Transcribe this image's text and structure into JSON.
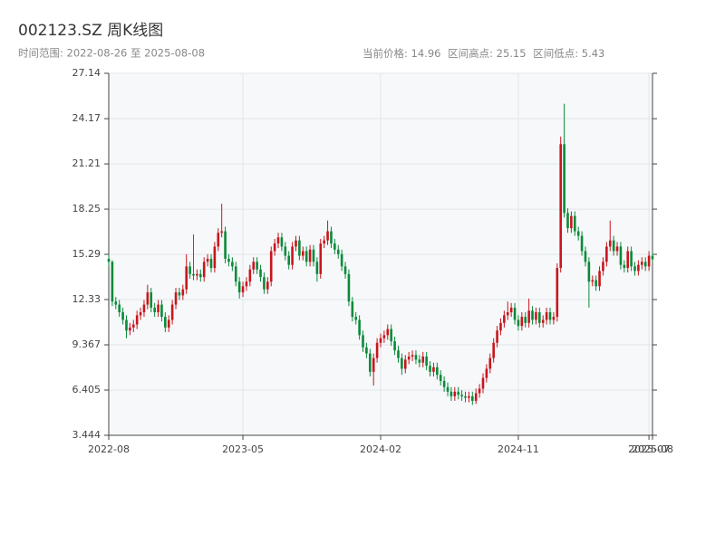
{
  "chart_data": {
    "type": "candlestick",
    "title": "002123.SZ 周K线图",
    "subtitle": "时间范围: 2022-08-26 至 2025-08-08",
    "stats": [
      "当前价格: 14.96",
      "区间高点: 25.15",
      "区间低点: 5.43"
    ],
    "up_color": "#c8161d",
    "down_color": "#0a8a3a",
    "grid": true,
    "ylim": [
      3.444,
      27.14
    ],
    "yticks": [
      3.444,
      6.405,
      9.367,
      12.33,
      15.29,
      18.25,
      21.21,
      24.17,
      27.14
    ],
    "xticks": [
      {
        "value": 0,
        "label": "2022-08"
      },
      {
        "value": 38,
        "label": "2023-05"
      },
      {
        "value": 77,
        "label": "2024-02"
      },
      {
        "value": 116,
        "label": "2024-11"
      },
      {
        "value": 153,
        "label": "2025-07"
      },
      {
        "value": 154,
        "label": "2025-08"
      }
    ],
    "open": [
      15.0,
      14.8,
      12.2,
      12.0,
      11.5,
      11.0,
      10.3,
      10.5,
      10.7,
      11.3,
      11.5,
      12.0,
      12.8,
      11.8,
      11.5,
      12.0,
      11.2,
      10.5,
      11.0,
      12.0,
      12.8,
      12.6,
      13.0,
      14.5,
      14.0,
      13.9,
      14.0,
      13.8,
      14.8,
      15.0,
      14.4,
      15.8,
      16.7,
      16.8,
      15.0,
      14.8,
      14.5,
      13.5,
      12.8,
      13.2,
      13.5,
      14.3,
      14.8,
      14.3,
      13.8,
      13.0,
      13.5,
      15.5,
      16.0,
      16.4,
      15.8,
      15.2,
      14.6,
      15.8,
      16.2,
      15.2,
      15.5,
      14.8,
      15.6,
      14.8,
      14.0,
      16.0,
      16.2,
      16.8,
      16.0,
      15.6,
      15.3,
      14.5,
      14.0,
      12.2,
      11.2,
      11.0,
      10.0,
      9.2,
      8.8,
      7.6,
      8.5,
      9.5,
      9.8,
      10.0,
      10.4,
      9.6,
      9.0,
      8.5,
      7.8,
      8.4,
      8.6,
      8.7,
      8.4,
      8.2,
      8.6,
      8.0,
      7.6,
      7.9,
      7.4,
      7.0,
      6.6,
      6.3,
      6.0,
      6.3,
      6.1,
      6.0,
      5.9,
      6.0,
      5.7,
      6.2,
      6.5,
      7.2,
      7.8,
      8.5,
      9.5,
      10.3,
      10.8,
      11.3,
      11.5,
      11.8,
      11.0,
      10.6,
      11.2,
      10.8,
      11.6,
      11.0,
      11.5,
      10.8,
      11.0,
      11.5,
      11.0,
      11.2,
      14.4,
      22.5,
      18.0,
      17.0,
      17.8,
      16.8,
      16.5,
      15.5,
      14.8,
      13.5,
      13.6,
      13.2,
      14.2,
      14.8,
      15.8,
      16.2,
      15.5,
      15.8,
      14.6,
      14.4,
      15.5,
      14.5,
      14.2,
      14.6,
      14.8,
      14.5,
      15.2
    ],
    "high": [
      15.3,
      14.9,
      12.5,
      12.3,
      11.8,
      11.3,
      10.8,
      11.0,
      11.6,
      11.8,
      12.3,
      13.3,
      13.1,
      12.1,
      12.3,
      12.3,
      11.5,
      11.3,
      12.3,
      13.1,
      13.1,
      13.3,
      15.3,
      14.8,
      16.6,
      14.3,
      14.3,
      15.1,
      15.3,
      15.3,
      16.1,
      17.0,
      18.6,
      17.1,
      15.3,
      15.1,
      14.8,
      13.8,
      13.5,
      13.8,
      14.6,
      15.1,
      15.1,
      14.6,
      14.1,
      13.8,
      15.8,
      16.3,
      16.7,
      16.7,
      16.1,
      15.5,
      16.1,
      16.5,
      16.5,
      15.8,
      15.8,
      15.9,
      15.9,
      15.1,
      16.3,
      16.5,
      17.5,
      17.1,
      16.3,
      15.9,
      15.6,
      14.8,
      14.3,
      12.5,
      11.5,
      11.3,
      10.3,
      9.5,
      9.1,
      8.8,
      9.8,
      10.1,
      10.3,
      10.7,
      10.7,
      9.9,
      9.3,
      8.8,
      8.7,
      8.9,
      9.0,
      9.0,
      8.7,
      8.9,
      8.9,
      8.3,
      8.2,
      8.2,
      7.7,
      7.3,
      6.9,
      6.6,
      6.6,
      6.6,
      6.4,
      6.3,
      6.3,
      6.3,
      6.5,
      6.8,
      7.5,
      8.1,
      8.8,
      9.8,
      10.6,
      11.1,
      11.6,
      12.2,
      12.1,
      12.1,
      11.3,
      11.5,
      11.5,
      12.4,
      11.9,
      11.8,
      11.8,
      11.3,
      11.8,
      11.8,
      11.5,
      14.7,
      23.0,
      25.15,
      18.3,
      18.1,
      18.1,
      17.1,
      16.8,
      15.8,
      15.1,
      13.9,
      13.9,
      14.5,
      15.1,
      16.1,
      17.5,
      16.5,
      16.1,
      16.1,
      14.9,
      15.8,
      15.8,
      14.8,
      14.9,
      15.1,
      15.1,
      15.5,
      15.5
    ],
    "low": [
      14.5,
      11.9,
      11.7,
      11.2,
      10.7,
      9.8,
      10.0,
      10.2,
      10.4,
      11.0,
      11.2,
      11.7,
      11.5,
      11.2,
      11.2,
      10.9,
      10.2,
      10.2,
      10.7,
      11.7,
      12.3,
      12.3,
      12.7,
      13.7,
      13.6,
      13.6,
      13.5,
      13.5,
      14.5,
      14.1,
      14.1,
      15.5,
      16.4,
      14.7,
      14.5,
      14.2,
      13.2,
      12.4,
      12.5,
      12.9,
      13.2,
      14.0,
      14.0,
      13.5,
      12.7,
      12.7,
      13.2,
      15.2,
      15.7,
      15.5,
      14.9,
      14.3,
      14.3,
      15.5,
      14.9,
      14.9,
      14.5,
      14.5,
      14.5,
      13.5,
      13.7,
      15.7,
      15.9,
      15.7,
      15.3,
      15.0,
      14.2,
      13.7,
      11.9,
      10.9,
      10.7,
      9.7,
      8.9,
      8.5,
      7.3,
      6.7,
      8.2,
      9.2,
      9.5,
      9.7,
      9.3,
      8.7,
      8.2,
      7.4,
      7.5,
      8.1,
      8.3,
      8.1,
      7.9,
      7.9,
      7.7,
      7.3,
      7.3,
      7.1,
      6.7,
      6.3,
      6.0,
      5.7,
      5.7,
      5.8,
      5.7,
      5.6,
      5.6,
      5.43,
      5.5,
      5.9,
      6.2,
      6.9,
      7.5,
      8.2,
      9.2,
      10.0,
      10.5,
      11.0,
      11.2,
      10.7,
      10.3,
      10.3,
      10.5,
      10.5,
      10.7,
      10.7,
      10.5,
      10.5,
      10.7,
      10.7,
      10.7,
      10.9,
      14.1,
      17.7,
      16.7,
      16.7,
      16.5,
      16.2,
      15.2,
      14.5,
      11.8,
      13.2,
      12.9,
      12.9,
      13.9,
      14.5,
      15.5,
      15.2,
      15.2,
      14.3,
      14.1,
      14.1,
      14.2,
      13.9,
      13.9,
      14.3,
      14.2,
      14.2,
      14.7
    ],
    "close": [
      14.8,
      12.2,
      12.0,
      11.5,
      11.0,
      10.3,
      10.5,
      10.7,
      11.3,
      11.5,
      12.0,
      12.8,
      11.8,
      11.5,
      12.0,
      11.2,
      10.5,
      11.0,
      12.0,
      12.8,
      12.6,
      13.0,
      14.5,
      14.0,
      13.9,
      14.0,
      13.8,
      14.8,
      15.0,
      14.4,
      15.8,
      16.7,
      16.8,
      15.0,
      14.8,
      14.5,
      13.5,
      12.8,
      13.2,
      13.5,
      14.3,
      14.8,
      14.3,
      13.8,
      13.0,
      13.5,
      15.5,
      16.0,
      16.4,
      15.8,
      15.2,
      14.6,
      15.8,
      16.2,
      15.2,
      15.5,
      14.8,
      15.6,
      14.8,
      14.0,
      16.0,
      16.2,
      16.8,
      16.0,
      15.6,
      15.3,
      14.5,
      14.0,
      12.2,
      11.2,
      11.0,
      10.0,
      9.2,
      8.8,
      7.6,
      8.5,
      9.5,
      9.8,
      10.0,
      10.4,
      9.6,
      9.0,
      8.5,
      7.8,
      8.4,
      8.6,
      8.7,
      8.4,
      8.2,
      8.6,
      8.0,
      7.6,
      7.9,
      7.4,
      7.0,
      6.6,
      6.3,
      6.0,
      6.3,
      6.1,
      6.0,
      5.9,
      6.0,
      5.7,
      6.2,
      6.5,
      7.2,
      7.8,
      8.5,
      9.5,
      10.3,
      10.8,
      11.3,
      11.5,
      11.8,
      11.0,
      10.6,
      11.2,
      10.8,
      11.6,
      11.0,
      11.5,
      10.8,
      11.0,
      11.5,
      11.0,
      11.2,
      14.4,
      22.5,
      18.0,
      17.0,
      17.8,
      16.8,
      16.5,
      15.5,
      14.8,
      13.5,
      13.6,
      13.2,
      14.2,
      14.8,
      15.8,
      16.2,
      15.5,
      15.8,
      14.6,
      14.4,
      15.5,
      14.5,
      14.2,
      14.6,
      14.8,
      14.5,
      15.2,
      14.96
    ]
  }
}
